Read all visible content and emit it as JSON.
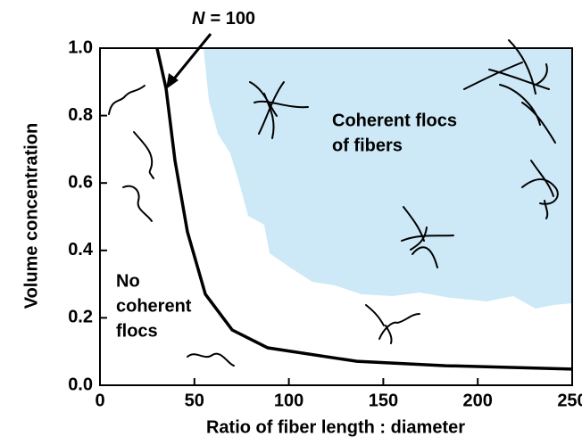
{
  "chart_data": {
    "type": "line",
    "xlabel": "Ratio of fiber length : diameter",
    "ylabel": "Volume concentration",
    "xlim": [
      0,
      250
    ],
    "ylim": [
      0,
      1
    ],
    "xticks": [
      0,
      50,
      100,
      150,
      200,
      250
    ],
    "yticks": [
      {
        "value": 0,
        "label": "0.0"
      },
      0.2,
      0.4,
      0.6,
      0.8,
      {
        "value": 1,
        "label": "1.0"
      }
    ],
    "series": [
      {
        "name": "N = 100",
        "color": "#000000",
        "x": [
          30.2,
          35,
          39.7,
          46.3,
          55.8,
          70,
          88.8,
          136,
          183,
          250
        ],
        "values": [
          1.0,
          0.88,
          0.667,
          0.455,
          0.27,
          0.164,
          0.111,
          0.071,
          0.058,
          0.048
        ]
      }
    ],
    "annotations": {
      "curve_symbol": "N",
      "curve_text": "= 100",
      "region_coherent": [
        "Coherent flocs",
        "of fibers"
      ],
      "region_none": [
        "No",
        "coherent",
        "flocs"
      ]
    }
  }
}
